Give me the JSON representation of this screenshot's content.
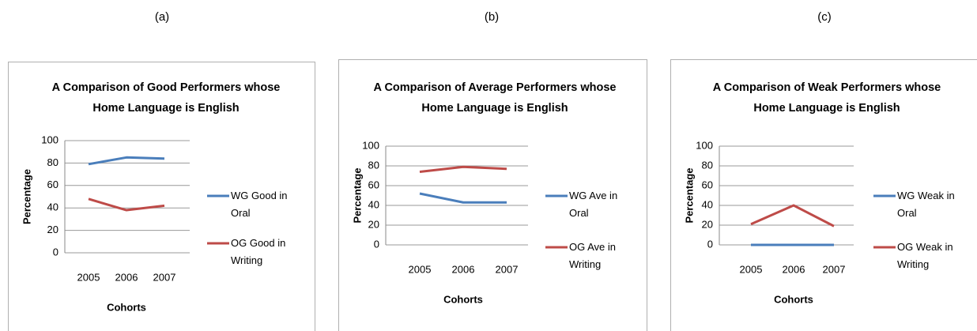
{
  "chart_data": [
    {
      "type": "line",
      "label": "(a)",
      "title": "A Comparison of Good Performers whose Home Language is English",
      "xlabel": "Cohorts",
      "ylabel": "Percentage",
      "categories": [
        "2005",
        "2006",
        "2007"
      ],
      "series": [
        {
          "name": "WG Good in Oral",
          "color": "#4a7ebb",
          "values": [
            79,
            85,
            84
          ]
        },
        {
          "name": "OG Good in Writing",
          "color": "#be4b48",
          "values": [
            48,
            38,
            42
          ]
        }
      ],
      "ylim": [
        0,
        100
      ],
      "yticks": [
        0,
        20,
        40,
        60,
        80,
        100
      ],
      "grid": true,
      "legend": "right"
    },
    {
      "type": "line",
      "label": "(b)",
      "title": "A Comparison of Average Performers whose Home Language is English",
      "xlabel": "Cohorts",
      "ylabel": "Percentage",
      "categories": [
        "2005",
        "2006",
        "2007"
      ],
      "series": [
        {
          "name": "WG Ave in Oral",
          "color": "#4a7ebb",
          "values": [
            52,
            43,
            43
          ]
        },
        {
          "name": "OG Ave in Writing",
          "color": "#be4b48",
          "values": [
            74,
            79,
            77
          ]
        }
      ],
      "ylim": [
        0,
        100
      ],
      "yticks": [
        0,
        20,
        40,
        60,
        80,
        100
      ],
      "grid": true,
      "legend": "right"
    },
    {
      "type": "line",
      "label": "(c)",
      "title": "A Comparison of Weak Performers whose Home Language is English",
      "xlabel": "Cohorts",
      "ylabel": "Percentage",
      "categories": [
        "2005",
        "2006",
        "2007"
      ],
      "series": [
        {
          "name": "WG Weak in Oral",
          "color": "#4a7ebb",
          "values": [
            0,
            0,
            0
          ]
        },
        {
          "name": "OG Weak in Writing",
          "color": "#be4b48",
          "values": [
            21,
            40,
            19
          ]
        }
      ],
      "ylim": [
        0,
        100
      ],
      "yticks": [
        0,
        20,
        40,
        60,
        80,
        100
      ],
      "grid": true,
      "legend": "right"
    }
  ]
}
